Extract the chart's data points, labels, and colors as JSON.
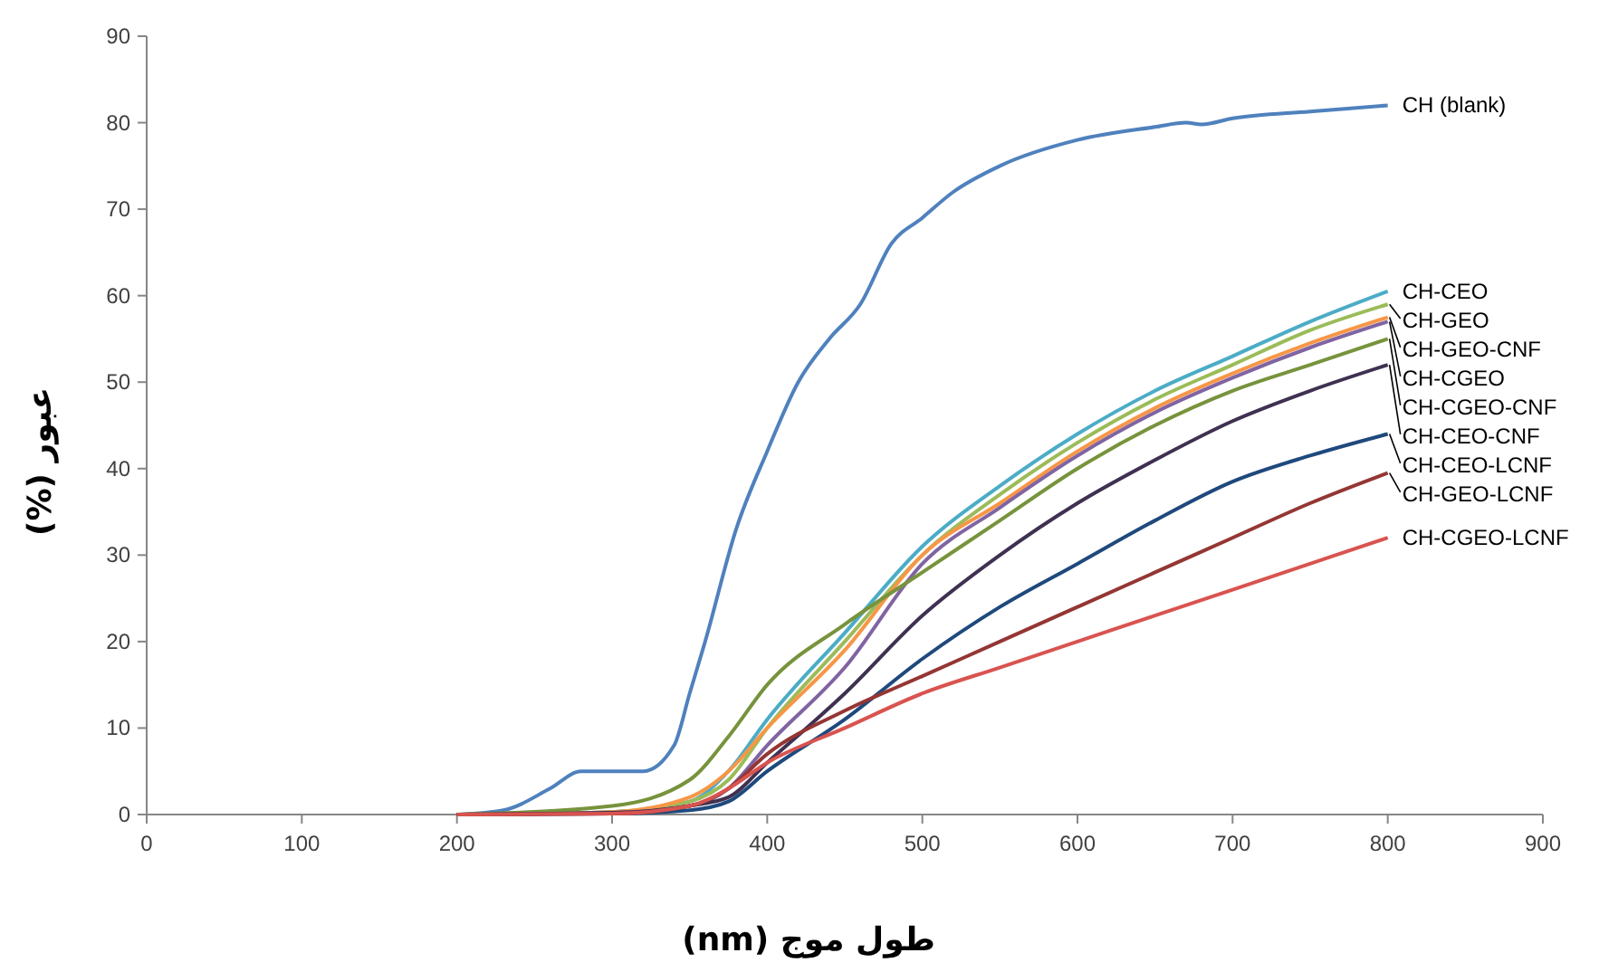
{
  "chart_data": {
    "type": "line",
    "xlabel": "طول موج (nm)",
    "ylabel": "عبور (%)",
    "x": [
      200,
      300,
      350,
      375,
      400,
      450,
      500,
      550,
      600,
      650,
      700,
      750,
      800
    ],
    "xlim": [
      0,
      900
    ],
    "xticks": [
      0,
      100,
      200,
      300,
      400,
      500,
      600,
      700,
      800,
      900
    ],
    "ylim": [
      0,
      90
    ],
    "yticks": [
      0,
      10,
      20,
      30,
      40,
      50,
      60,
      70,
      80,
      90
    ],
    "grid": false,
    "legend": false,
    "marker": "none",
    "line_style": "solid",
    "series": [
      {
        "name": "CH (blank)",
        "color": "#4f81bd",
        "x": [
          200,
          230,
          260,
          280,
          300,
          320,
          340,
          350,
          360,
          380,
          400,
          420,
          440,
          460,
          480,
          500,
          520,
          550,
          600,
          650,
          670,
          680,
          700,
          750,
          800
        ],
        "values": [
          0,
          0.5,
          3,
          5,
          5,
          5,
          8,
          14,
          20,
          33,
          42,
          50,
          55,
          59,
          66,
          69,
          72,
          75,
          78,
          79.5,
          80,
          79.8,
          80.5,
          81.3,
          82
        ]
      },
      {
        "name": "CH-CEO",
        "color": "#4bacc6",
        "values": [
          0,
          0.3,
          1.5,
          5,
          11,
          21,
          31,
          38,
          44,
          49,
          53,
          57,
          60.5
        ]
      },
      {
        "name": "CH-GEO",
        "color": "#9bbb59",
        "values": [
          0,
          0.3,
          1.5,
          4,
          10,
          20,
          30,
          37,
          43,
          48,
          52,
          56,
          59
        ]
      },
      {
        "name": "CH-GEO-CNF",
        "color": "#f79646",
        "values": [
          0,
          0.3,
          2,
          5,
          10,
          19,
          30,
          36,
          42,
          47,
          51,
          54.5,
          57.5
        ]
      },
      {
        "name": "CH-CGEO",
        "color": "#8064a2",
        "values": [
          0,
          0.2,
          1,
          3,
          8,
          17,
          29,
          35.5,
          41.5,
          46.5,
          50.5,
          54,
          57
        ]
      },
      {
        "name": "CH-CGEO-CNF",
        "color": "#77933c",
        "values": [
          0,
          1,
          4,
          9,
          15,
          22,
          28,
          34,
          40,
          45,
          49,
          52,
          55
        ]
      },
      {
        "name": "CH-CEO-CNF",
        "color": "#3f3151",
        "values": [
          0,
          0.2,
          1,
          2,
          6,
          14,
          23,
          30,
          36,
          41,
          45.5,
          49,
          52
        ]
      },
      {
        "name": "CH-CEO-LCNF",
        "color": "#1f497d",
        "values": [
          0,
          0.1,
          0.5,
          1.5,
          5,
          11,
          18,
          24,
          29,
          34,
          38.5,
          41.5,
          44
        ]
      },
      {
        "name": "CH-GEO-LCNF",
        "color": "#943634",
        "values": [
          0,
          0.1,
          1,
          3,
          7,
          12,
          16,
          20,
          24,
          28,
          32,
          36,
          39.5
        ]
      },
      {
        "name": "CH-CGEO-LCNF",
        "color": "#d9534f",
        "values": [
          0,
          0.1,
          1,
          3,
          6,
          10,
          14,
          17,
          20,
          23,
          26,
          29,
          32
        ]
      }
    ]
  }
}
